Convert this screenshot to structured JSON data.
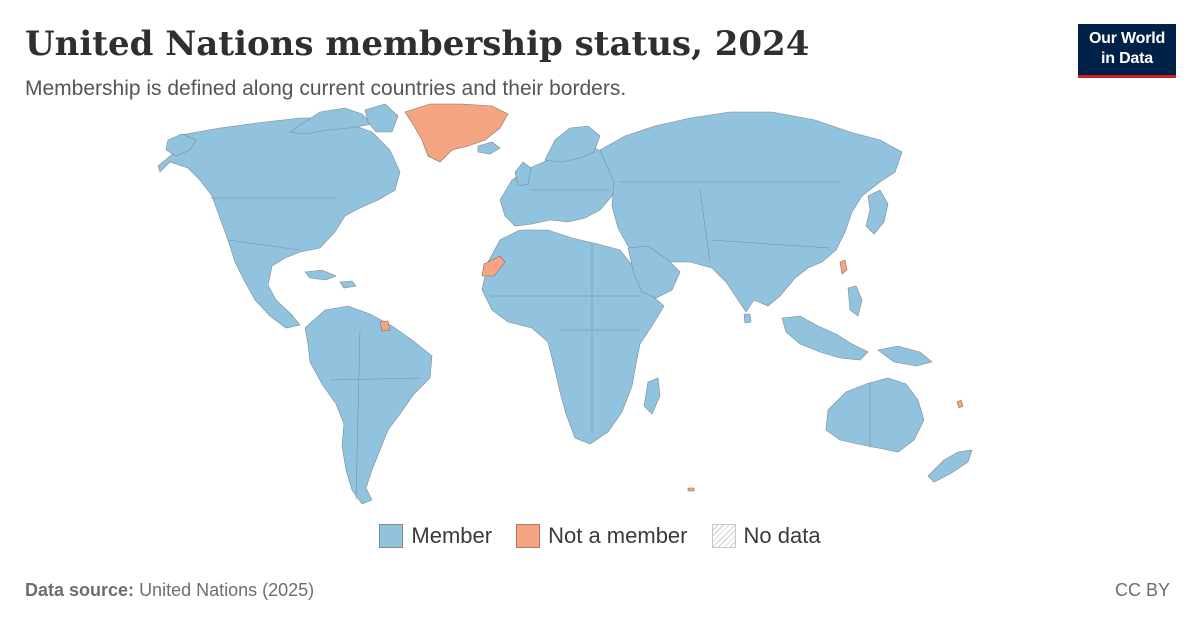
{
  "header": {
    "title": "United Nations membership status, 2024",
    "subtitle": "Membership is defined along current countries and their borders."
  },
  "logo": {
    "line1": "Our World",
    "line2": "in Data",
    "background": "#002147",
    "accent": "#ce261e"
  },
  "legend": {
    "items": [
      {
        "label": "Member",
        "color": "#92c3de"
      },
      {
        "label": "Not a member",
        "color": "#f4a582"
      },
      {
        "label": "No data",
        "color": "hatched"
      }
    ]
  },
  "footer": {
    "source_label": "Data source:",
    "source_value": "United Nations (2025)",
    "license": "CC BY"
  }
}
